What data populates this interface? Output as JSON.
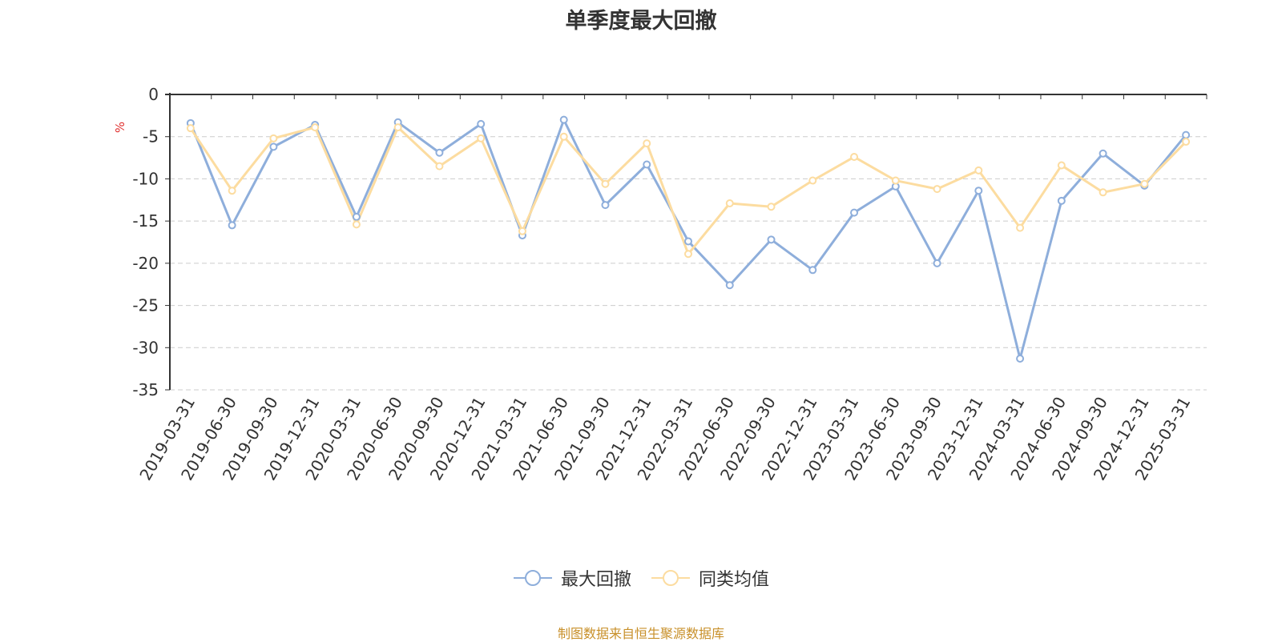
{
  "chart_data": {
    "type": "line",
    "title": "单季度最大回撤",
    "ylabel": "%",
    "xlabel": "",
    "ylim": [
      -35,
      0
    ],
    "yticks": [
      0,
      -5,
      -10,
      -15,
      -20,
      -25,
      -30,
      -35
    ],
    "grid": true,
    "legend_position": "bottom",
    "categories": [
      "2019-03-31",
      "2019-06-30",
      "2019-09-30",
      "2019-12-31",
      "2020-03-31",
      "2020-06-30",
      "2020-09-30",
      "2020-12-31",
      "2021-03-31",
      "2021-06-30",
      "2021-09-30",
      "2021-12-31",
      "2022-03-31",
      "2022-06-30",
      "2022-09-30",
      "2022-12-31",
      "2023-03-31",
      "2023-06-30",
      "2023-09-30",
      "2023-12-31",
      "2024-03-31",
      "2024-06-30",
      "2024-09-30",
      "2024-12-31",
      "2025-03-31"
    ],
    "series": [
      {
        "name": "最大回撤",
        "color": "#8eaedb",
        "values": [
          -3.4,
          -15.5,
          -6.2,
          -3.6,
          -14.5,
          -3.3,
          -6.9,
          -3.5,
          -16.7,
          -3.0,
          -13.1,
          -8.3,
          -17.4,
          -22.6,
          -17.2,
          -20.8,
          -14.0,
          -10.9,
          -20.0,
          -11.4,
          -31.3,
          -12.6,
          -7.0,
          -10.8,
          -4.8
        ]
      },
      {
        "name": "同类均值",
        "color": "#fcdca0",
        "values": [
          -4.0,
          -11.4,
          -5.2,
          -3.9,
          -15.4,
          -3.9,
          -8.5,
          -5.2,
          -16.2,
          -5.0,
          -10.6,
          -5.8,
          -18.9,
          -12.9,
          -13.3,
          -10.2,
          -7.4,
          -10.2,
          -11.2,
          -9.0,
          -15.8,
          -8.4,
          -11.6,
          -10.6,
          -5.6
        ]
      }
    ]
  },
  "footer": {
    "source": "制图数据来自恒生聚源数据库"
  }
}
